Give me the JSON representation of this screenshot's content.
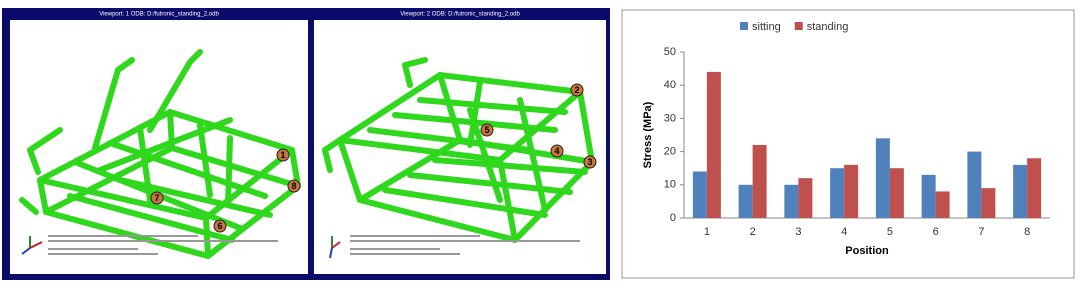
{
  "viewports": [
    {
      "title": "Viewport: 1     ODB: D:/futronic_standing_2.odb",
      "markers": [
        "1",
        "8",
        "7",
        "6"
      ]
    },
    {
      "title": "Viewport: 2     ODB: D:/futronic_standing_2.odb",
      "markers": [
        "2",
        "5",
        "4",
        "3"
      ]
    }
  ],
  "chart_data": {
    "type": "bar",
    "x_label": "Position",
    "y_label": "Stress (MPa)",
    "categories": [
      "1",
      "2",
      "3",
      "4",
      "5",
      "6",
      "7",
      "8"
    ],
    "series": [
      {
        "name": "sitting",
        "color": "#4f81bd",
        "values": [
          14,
          10,
          10,
          15,
          24,
          13,
          20,
          16
        ]
      },
      {
        "name": "standing",
        "color": "#c0504d",
        "values": [
          44,
          22,
          12,
          16,
          15,
          8,
          9,
          18
        ]
      }
    ],
    "ylim": [
      0,
      50
    ],
    "yticks": [
      0,
      10,
      20,
      30,
      40,
      50
    ],
    "grid": false,
    "legend": "top"
  }
}
